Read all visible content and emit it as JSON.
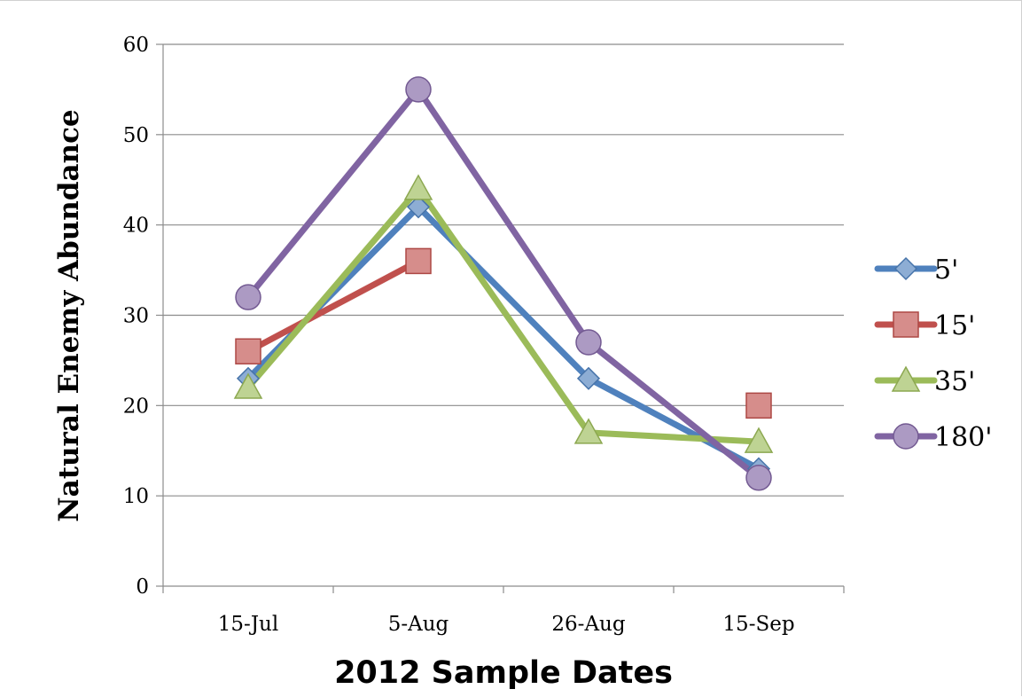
{
  "chart_data": {
    "type": "line",
    "title": "",
    "xlabel": "2012 Sample Dates",
    "ylabel": "Natural Enemy Abundance",
    "categories": [
      "15-Jul",
      "5-Aug",
      "26-Aug",
      "15-Sep"
    ],
    "ylim": [
      0,
      60
    ],
    "yticks": [
      0,
      10,
      20,
      30,
      40,
      50,
      60
    ],
    "grid": true,
    "legend_position": "right",
    "series": [
      {
        "name": "5'",
        "color": "#4f81bd",
        "marker": "diamond",
        "values": [
          23,
          42,
          23,
          13
        ]
      },
      {
        "name": "15'",
        "color": "#c0504d",
        "marker": "square",
        "values": [
          26,
          36,
          null,
          20
        ]
      },
      {
        "name": "35'",
        "color": "#9bbb59",
        "marker": "triangle",
        "values": [
          22,
          44,
          17,
          16
        ]
      },
      {
        "name": "180'",
        "color": "#8064a2",
        "marker": "circle",
        "values": [
          32,
          55,
          27,
          12
        ]
      }
    ]
  }
}
